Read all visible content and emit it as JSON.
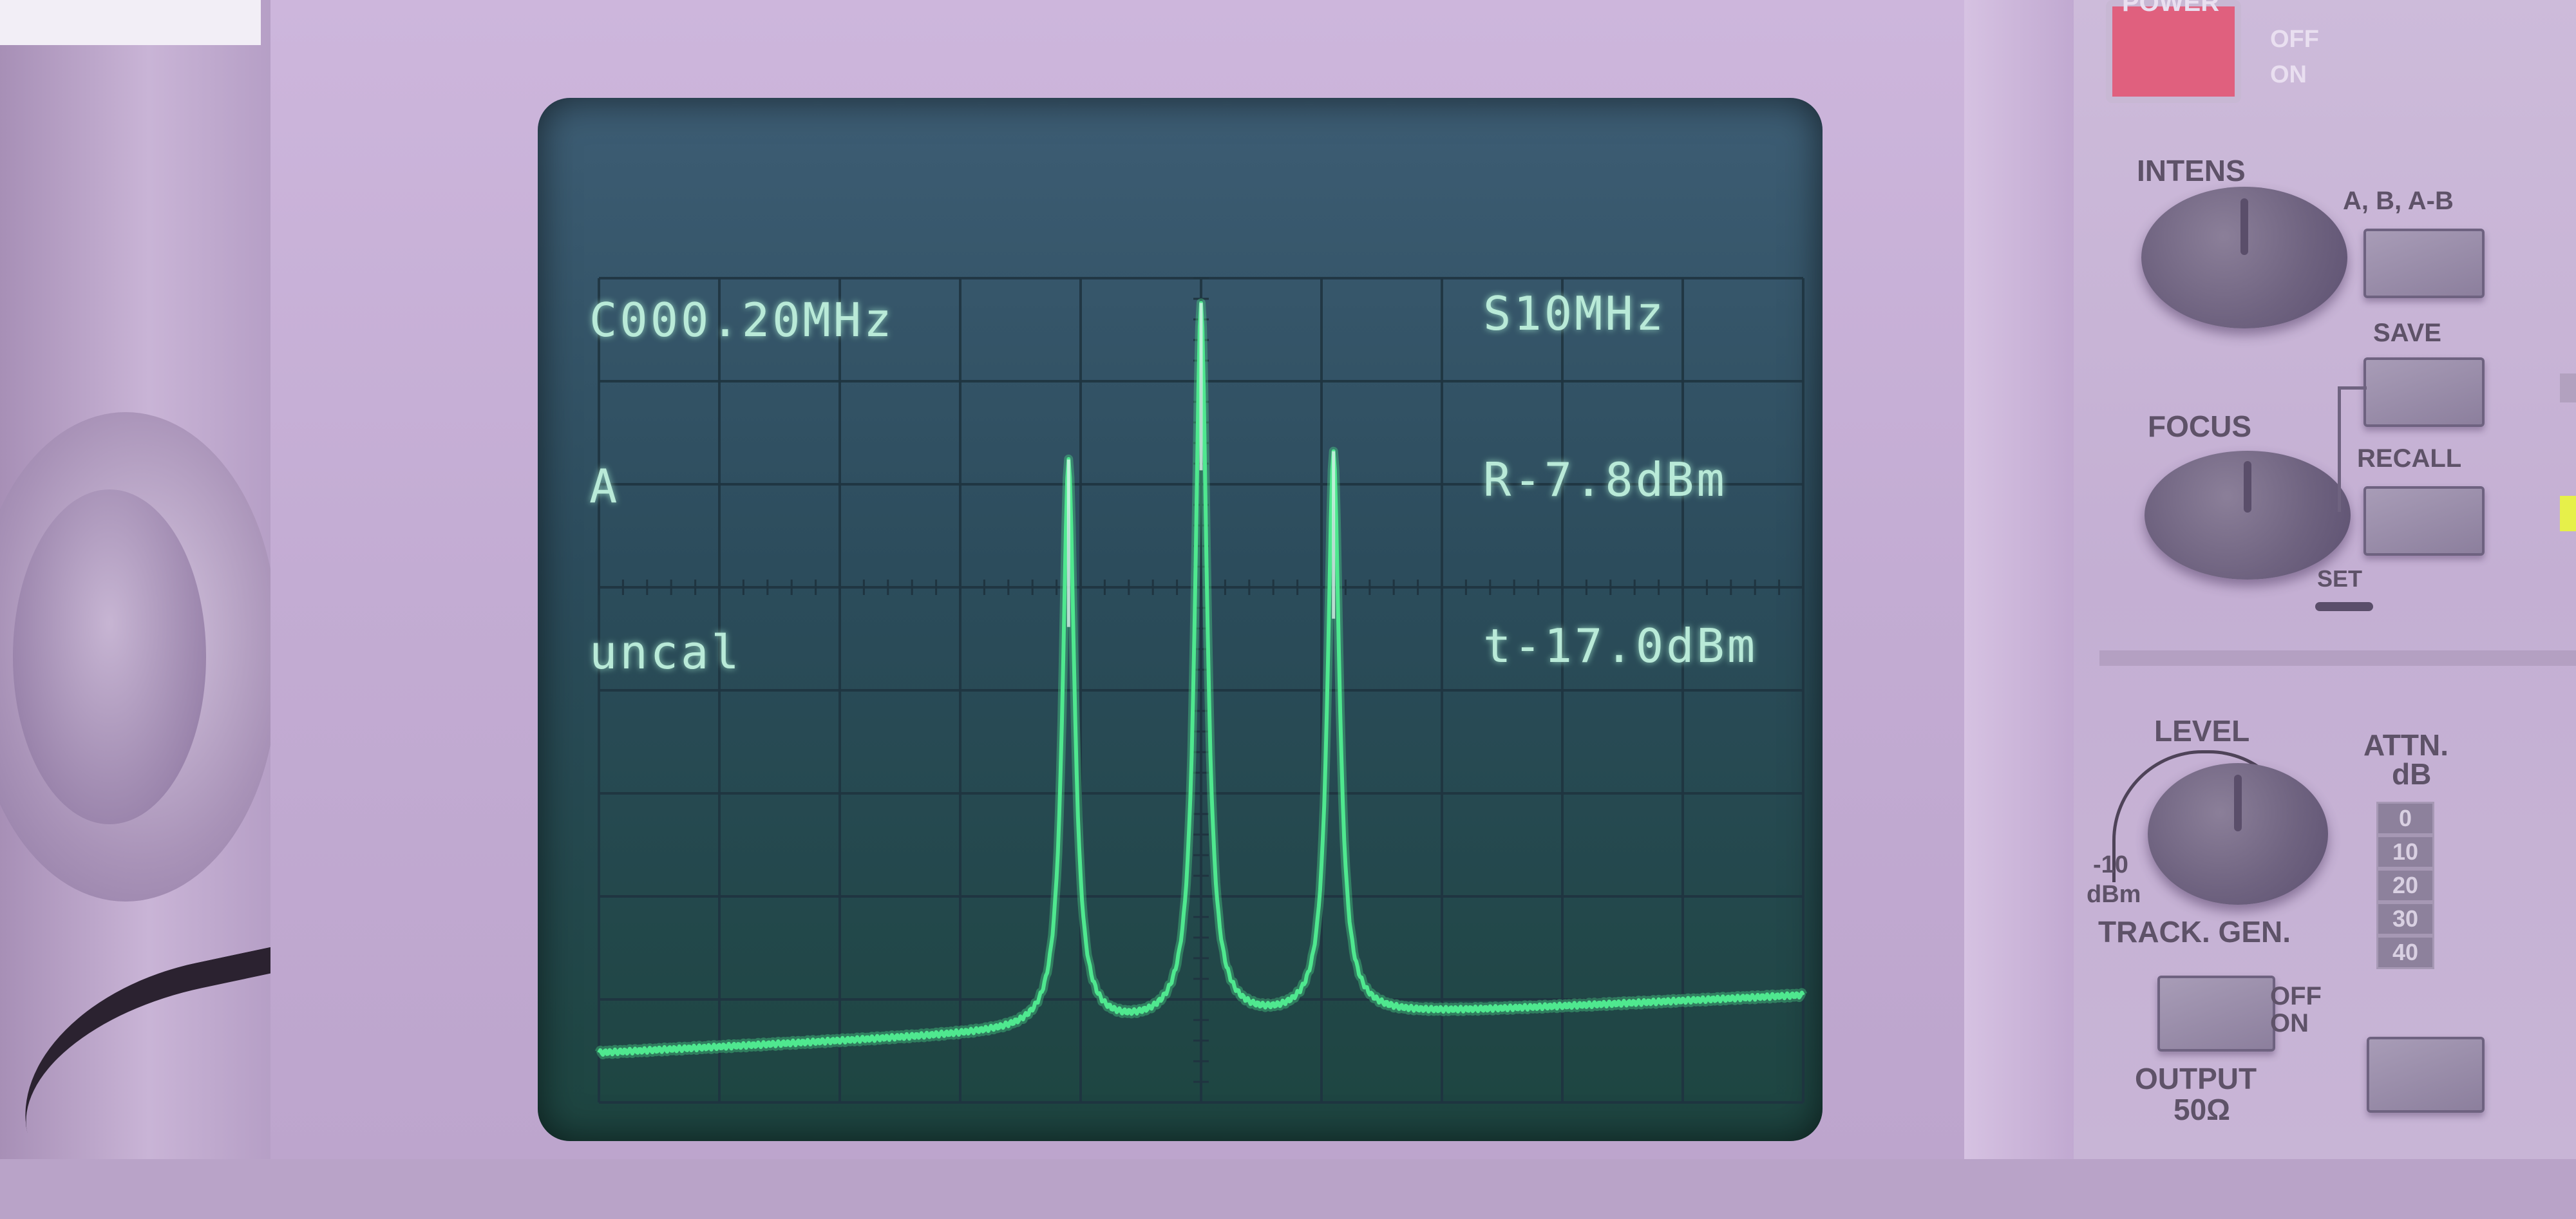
{
  "screen": {
    "top_left": [
      "C000.20MHz",
      "A",
      "uncal"
    ],
    "top_right": [
      "S10MHz",
      "R-7.8dBm",
      "t-17.0dBm"
    ]
  },
  "panel": {
    "power_label": "POWER",
    "power_off": "OFF",
    "power_on": "ON",
    "intens": "INTENS",
    "ab": "A, B, A-B",
    "save": "SAVE",
    "focus": "FOCUS",
    "recall": "RECALL",
    "set": "SET",
    "level": "LEVEL",
    "level_min": "-10",
    "level_unit": "dBm",
    "attn": "ATTN.",
    "attn_unit": "dB",
    "attn_values": [
      "0",
      "10",
      "20",
      "30",
      "40"
    ],
    "track_gen": "TRACK. GEN.",
    "track_off": "OFF",
    "track_on": "ON",
    "output": "OUTPUT",
    "output_imp": "50Ω"
  },
  "colors": {
    "trace": "#4fe88f",
    "graticule": "#1f3440",
    "screen_text": "#b9ead8",
    "power_button": "#e0607e"
  },
  "trace_shape": {
    "baseline_level_left": 0.06,
    "baseline_level_right": 0.13,
    "peaks": [
      {
        "position": 0.39,
        "level": 0.78
      },
      {
        "position": 0.5,
        "level": 0.97
      },
      {
        "position": 0.61,
        "level": 0.79
      }
    ]
  }
}
